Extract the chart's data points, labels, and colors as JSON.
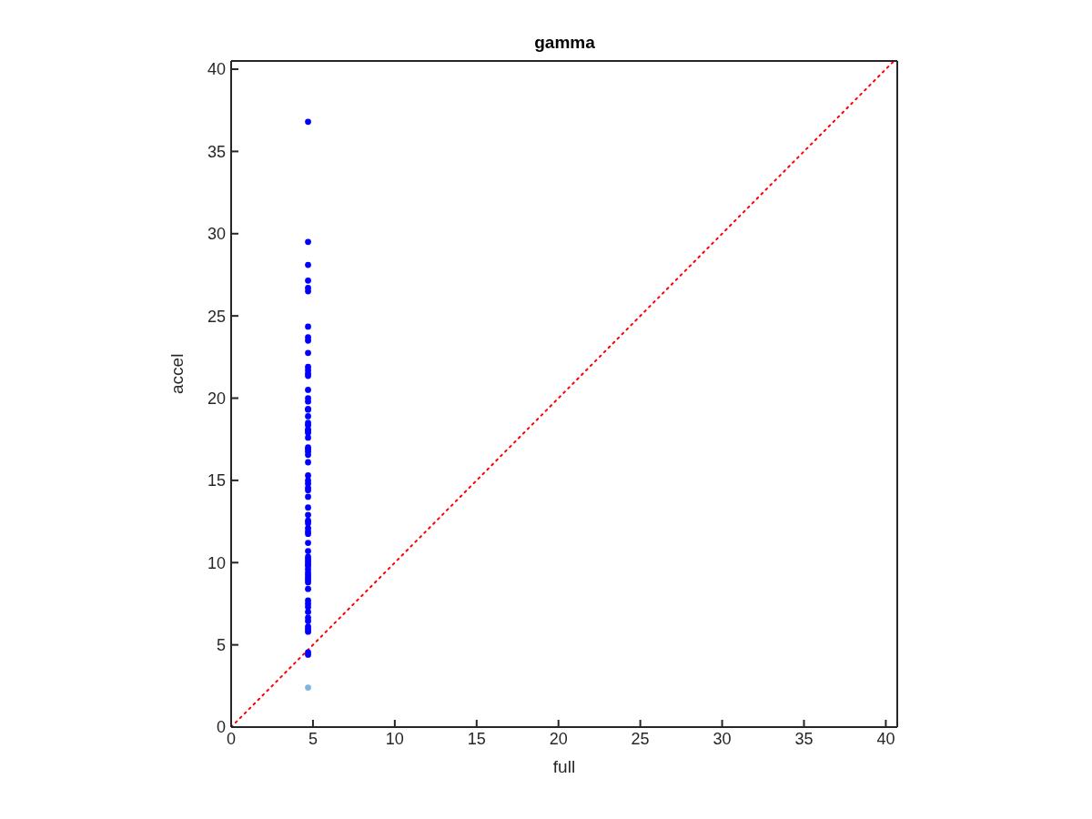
{
  "chart_data": {
    "type": "scatter",
    "title": "gamma",
    "xlabel": "full",
    "ylabel": "accel",
    "xlim": [
      0,
      40.7
    ],
    "ylim": [
      0,
      40.5
    ],
    "xticks": [
      0,
      5,
      10,
      15,
      20,
      25,
      30,
      35,
      40
    ],
    "yticks": [
      0,
      5,
      10,
      15,
      20,
      25,
      30,
      35,
      40
    ],
    "marker": "circle",
    "series": [
      {
        "color": "#0000ff",
        "x": [
          4.7,
          4.7,
          4.7,
          4.7,
          4.7,
          4.7,
          4.7,
          4.7,
          4.7,
          4.7,
          4.7,
          4.7,
          4.7,
          4.7,
          4.7,
          4.7,
          4.7,
          4.7,
          4.7,
          4.7,
          4.7,
          4.7,
          4.7,
          4.7,
          4.7,
          4.7,
          4.7,
          4.7,
          4.7,
          4.7,
          4.7,
          4.7,
          4.7,
          4.7,
          4.7,
          4.7,
          4.7,
          4.7,
          4.7,
          4.7,
          4.7,
          4.7,
          4.7,
          4.7,
          4.7,
          4.7,
          4.7,
          4.7,
          4.7,
          4.7,
          4.7,
          4.7,
          4.7,
          4.7,
          4.7,
          4.7,
          4.7,
          4.7,
          4.7,
          4.7,
          4.7,
          4.7,
          4.7,
          4.7,
          4.7,
          4.7,
          4.7,
          4.7,
          4.7
        ],
        "values": [
          36.8,
          29.5,
          28.1,
          27.15,
          26.7,
          26.5,
          24.35,
          23.7,
          23.5,
          22.75,
          21.9,
          21.7,
          21.5,
          21.35,
          20.5,
          20.0,
          19.8,
          19.35,
          19.3,
          18.9,
          18.5,
          18.35,
          18.1,
          18.0,
          17.9,
          17.6,
          17.0,
          16.9,
          16.75,
          16.55,
          16.1,
          15.3,
          15.0,
          14.8,
          14.55,
          14.4,
          14.0,
          13.35,
          12.9,
          12.55,
          12.4,
          12.1,
          11.9,
          11.75,
          11.2,
          10.7,
          10.35,
          10.2,
          10.05,
          9.9,
          9.8,
          9.6,
          9.4,
          9.25,
          9.1,
          8.95,
          8.8,
          8.4,
          7.7,
          7.5,
          7.3,
          7.0,
          6.65,
          6.45,
          6.1,
          5.95,
          5.8,
          4.55,
          4.4
        ]
      },
      {
        "color": "#7fb4e0",
        "x": [
          4.7
        ],
        "values": [
          2.4
        ]
      },
      {
        "type": "line",
        "color": "#ff0000",
        "line_style": "dotted",
        "marker": "none",
        "x": [
          0,
          40.5
        ],
        "values": [
          0,
          40.5
        ]
      }
    ]
  }
}
